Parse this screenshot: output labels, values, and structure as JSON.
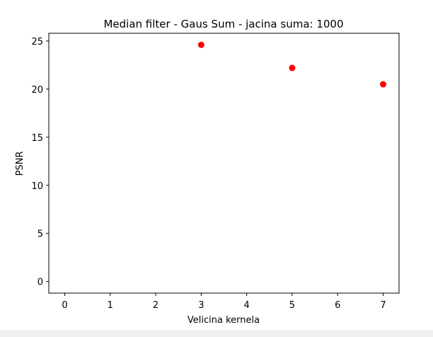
{
  "chart_data": {
    "type": "scatter",
    "title": "Median filter - Gaus Sum - jacina suma: 1000",
    "xlabel": "Velicina kernela",
    "ylabel": "PSNR",
    "xlim": [
      -0.35,
      7.35
    ],
    "ylim": [
      -1.2,
      25.8
    ],
    "xticks": [
      0,
      1,
      2,
      3,
      4,
      5,
      6,
      7
    ],
    "yticks": [
      0,
      5,
      10,
      15,
      20,
      25
    ],
    "grid": false,
    "points": [
      {
        "x": 3,
        "y": 24.6
      },
      {
        "x": 5,
        "y": 22.2
      },
      {
        "x": 7,
        "y": 20.5
      }
    ],
    "color": "#ff0000"
  }
}
